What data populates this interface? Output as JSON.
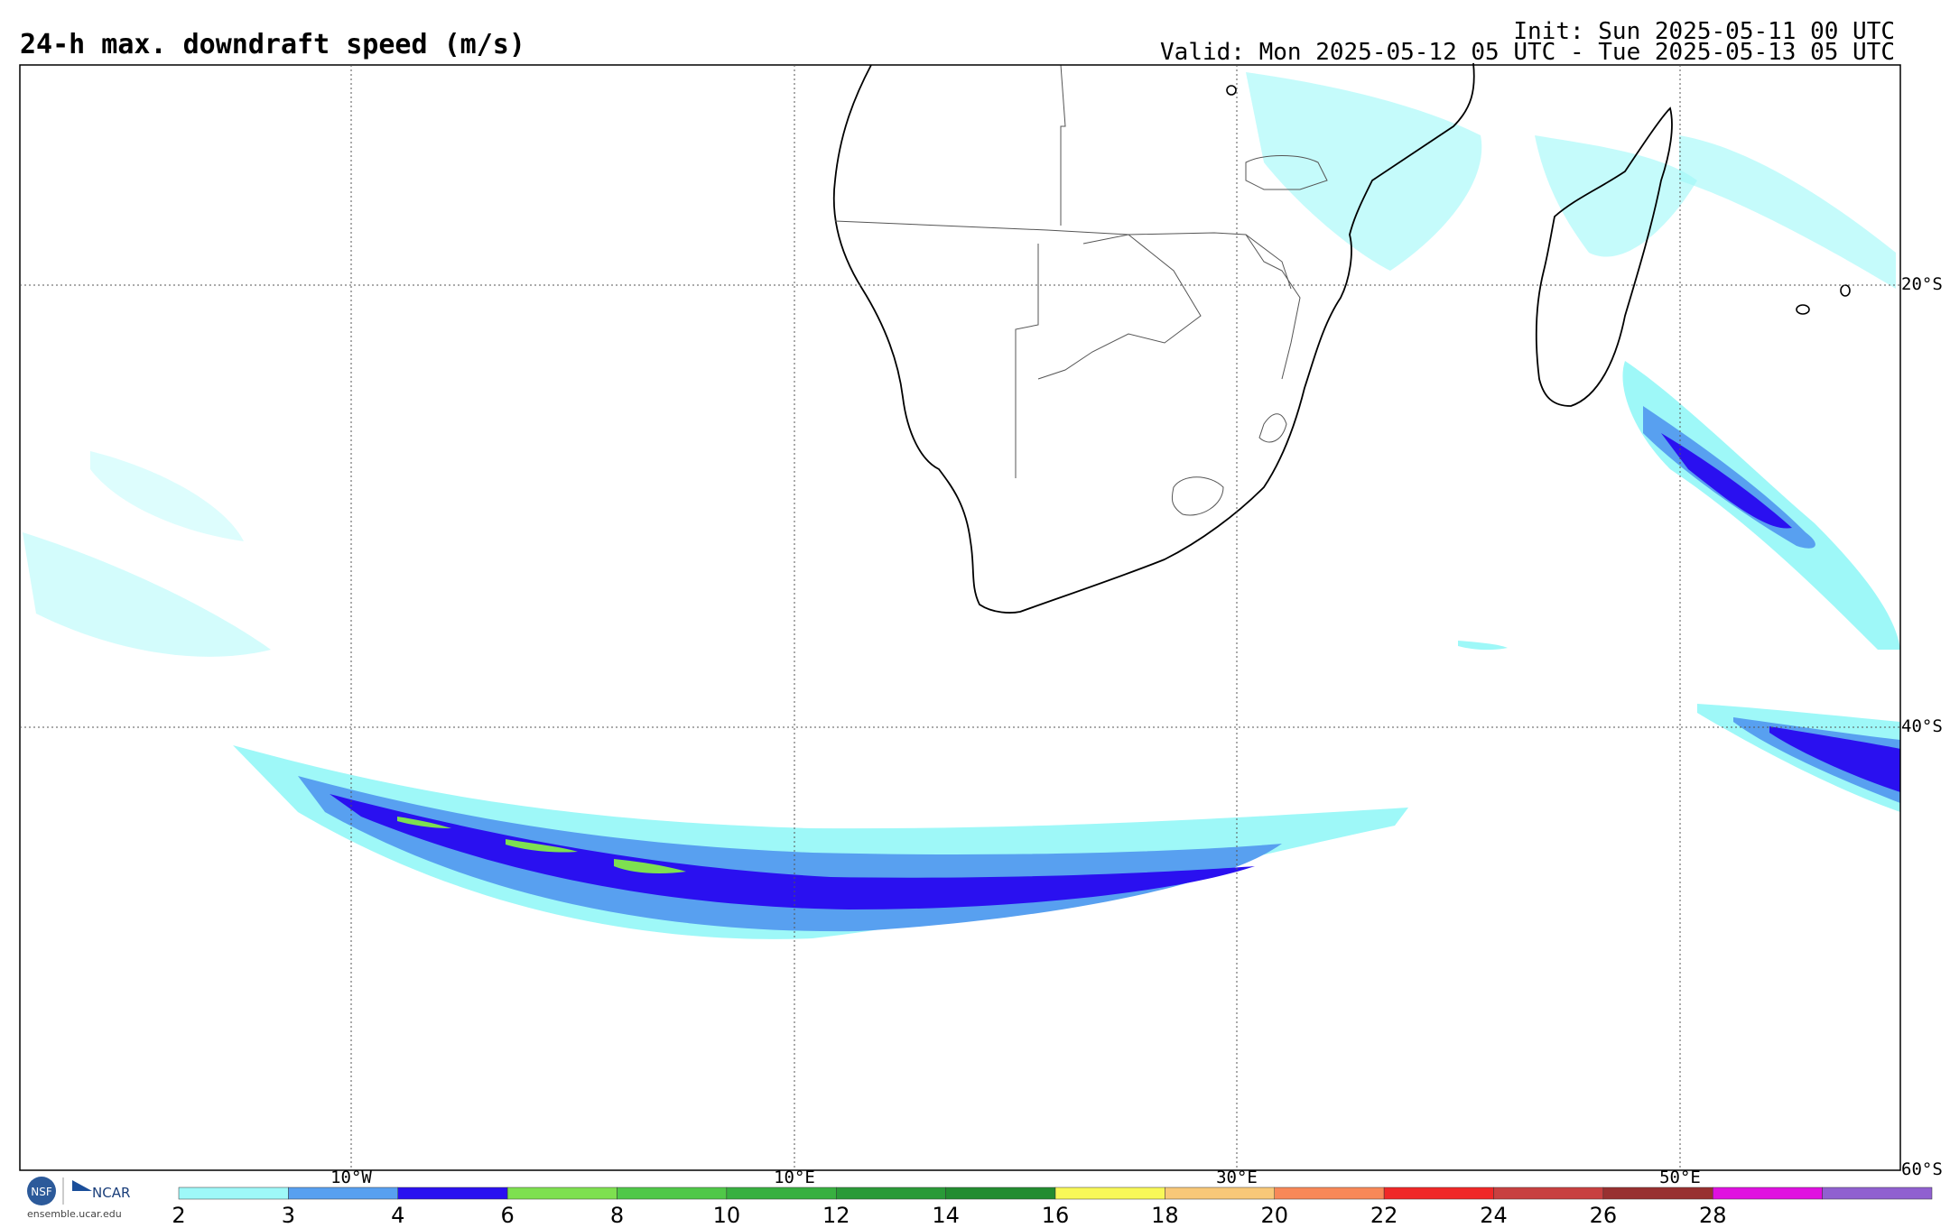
{
  "header": {
    "title": "24-h max. downdraft speed (m/s)",
    "init": "Init: Sun 2025-05-11 00 UTC",
    "valid": "Valid: Mon 2025-05-12 05 UTC - Tue 2025-05-13 05 UTC"
  },
  "map": {
    "lat_labels": [
      "20°S",
      "40°S",
      "60°S"
    ],
    "lon_labels": [
      "10°W",
      "10°E",
      "30°E",
      "50°E"
    ]
  },
  "colorbar": {
    "ticks": [
      "2",
      "3",
      "4",
      "6",
      "8",
      "10",
      "12",
      "14",
      "16",
      "18",
      "20",
      "22",
      "24",
      "26",
      "28"
    ],
    "colors": [
      "#9ef8f8",
      "#58a0f0",
      "#2a10f0",
      "#7ee050",
      "#50c848",
      "#38b040",
      "#2a9a38",
      "#228c30",
      "#f8f858",
      "#f8c878",
      "#f88858",
      "#f02828",
      "#c84040",
      "#983030",
      "#e010e0",
      "#9060d0"
    ]
  },
  "footer": {
    "logo_text": "NCAR",
    "url": "ensemble.ucar.edu"
  }
}
